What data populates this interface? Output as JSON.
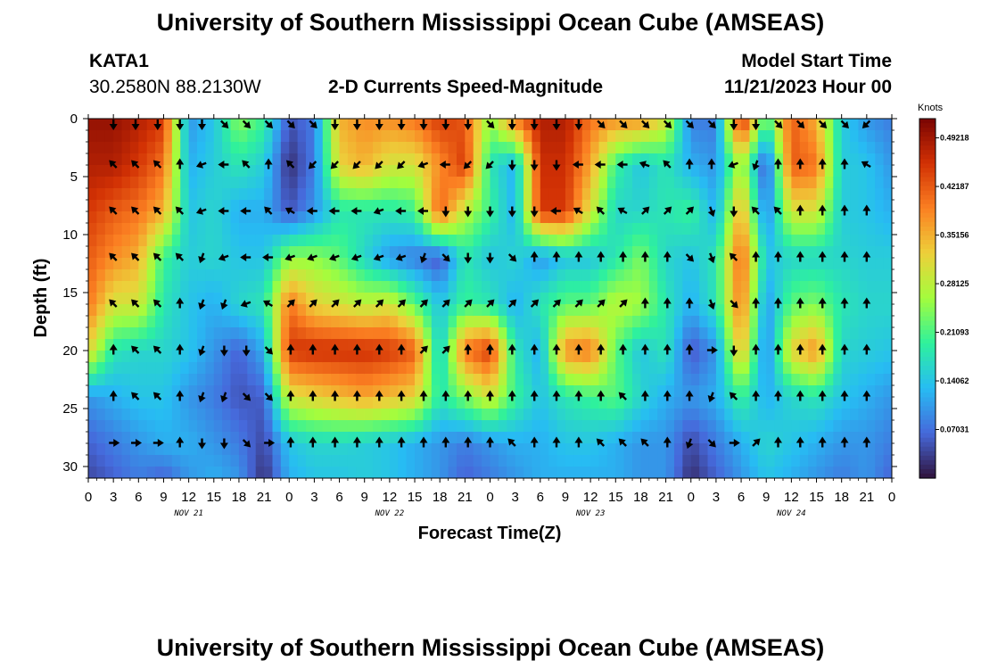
{
  "header": {
    "title": "University of Southern Mississippi Ocean Cube (AMSEAS)",
    "station": "KATA1",
    "coords": "30.2580N  88.2130W",
    "plot_title": "2-D Currents Speed-Magnitude",
    "model_label": "Model Start Time",
    "model_time": "11/21/2023 Hour 00"
  },
  "footer": {
    "title": "University of Southern Mississippi Ocean Cube (AMSEAS)"
  },
  "colors": {
    "colormap": [
      "#30123b",
      "#4669db",
      "#27bcf3",
      "#2ef19d",
      "#a3fd3d",
      "#edd03a",
      "#fb8022",
      "#d23104",
      "#7a0403"
    ]
  },
  "chart_data": {
    "type": "heatmap",
    "xlabel": "Forecast Time(Z)",
    "ylabel": "Depth (ft)",
    "colorbar_label": "Knots",
    "x_range_hours": [
      0,
      96
    ],
    "ylim": [
      0,
      31
    ],
    "y_inverted": true,
    "x_ticks": [
      "0",
      "3",
      "6",
      "9",
      "12",
      "15",
      "18",
      "21",
      "0",
      "3",
      "6",
      "9",
      "12",
      "15",
      "18",
      "21",
      "0",
      "3",
      "6",
      "9",
      "12",
      "15",
      "18",
      "21",
      "0",
      "3",
      "6",
      "9",
      "12",
      "15",
      "18",
      "21",
      "0"
    ],
    "y_ticks": [
      0,
      5,
      10,
      15,
      20,
      25,
      30
    ],
    "day_labels": [
      "NOV 21",
      "NOV 22",
      "NOV 23",
      "NOV 24"
    ],
    "colorbar_ticks": [
      "0.49218",
      "0.42187",
      "0.35156",
      "0.28125",
      "0.21093",
      "0.14062",
      "0.07031"
    ],
    "colorbar_range": [
      0,
      0.52
    ],
    "depths": [
      0,
      4,
      8,
      12,
      16,
      20,
      24,
      28,
      31
    ],
    "times_hours": [
      0,
      3,
      6,
      9,
      12,
      15,
      18,
      21,
      24,
      27,
      30,
      33,
      36,
      39,
      42,
      45,
      48,
      51,
      54,
      57,
      60,
      63,
      66,
      69,
      72,
      75,
      78,
      81,
      84,
      87,
      90,
      93,
      96
    ],
    "speed_knots": [
      [
        0.5,
        0.5,
        0.48,
        0.45,
        0.1,
        0.14,
        0.25,
        0.2,
        0.05,
        0.08,
        0.35,
        0.38,
        0.38,
        0.4,
        0.45,
        0.42,
        0.25,
        0.4,
        0.48,
        0.48,
        0.4,
        0.38,
        0.38,
        0.3,
        0.08,
        0.08,
        0.48,
        0.2,
        0.42,
        0.35,
        0.15,
        0.1,
        0.08
      ],
      [
        0.48,
        0.48,
        0.45,
        0.4,
        0.12,
        0.15,
        0.18,
        0.15,
        0.02,
        0.08,
        0.32,
        0.35,
        0.3,
        0.3,
        0.38,
        0.45,
        0.18,
        0.12,
        0.46,
        0.46,
        0.36,
        0.2,
        0.14,
        0.18,
        0.12,
        0.1,
        0.28,
        0.04,
        0.42,
        0.4,
        0.15,
        0.14,
        0.1
      ],
      [
        0.45,
        0.42,
        0.4,
        0.35,
        0.14,
        0.16,
        0.12,
        0.12,
        0.05,
        0.1,
        0.18,
        0.18,
        0.18,
        0.2,
        0.42,
        0.28,
        0.2,
        0.12,
        0.45,
        0.45,
        0.3,
        0.16,
        0.16,
        0.18,
        0.2,
        0.12,
        0.36,
        0.08,
        0.3,
        0.3,
        0.15,
        0.14,
        0.12
      ],
      [
        0.42,
        0.38,
        0.35,
        0.2,
        0.15,
        0.16,
        0.14,
        0.14,
        0.25,
        0.25,
        0.22,
        0.16,
        0.1,
        0.08,
        0.05,
        0.18,
        0.14,
        0.16,
        0.1,
        0.14,
        0.14,
        0.18,
        0.24,
        0.16,
        0.14,
        0.18,
        0.42,
        0.14,
        0.16,
        0.16,
        0.16,
        0.15,
        0.15
      ],
      [
        0.4,
        0.3,
        0.3,
        0.18,
        0.14,
        0.12,
        0.16,
        0.18,
        0.4,
        0.32,
        0.3,
        0.28,
        0.3,
        0.22,
        0.14,
        0.2,
        0.18,
        0.12,
        0.18,
        0.22,
        0.22,
        0.28,
        0.26,
        0.18,
        0.12,
        0.18,
        0.4,
        0.1,
        0.22,
        0.24,
        0.18,
        0.16,
        0.16
      ],
      [
        0.32,
        0.18,
        0.16,
        0.16,
        0.14,
        0.1,
        0.06,
        0.12,
        0.45,
        0.46,
        0.46,
        0.46,
        0.45,
        0.42,
        0.14,
        0.4,
        0.45,
        0.18,
        0.12,
        0.38,
        0.4,
        0.22,
        0.14,
        0.18,
        0.05,
        0.1,
        0.35,
        0.08,
        0.32,
        0.38,
        0.16,
        0.15,
        0.14
      ],
      [
        0.1,
        0.12,
        0.14,
        0.14,
        0.1,
        0.08,
        0.05,
        0.06,
        0.3,
        0.32,
        0.34,
        0.36,
        0.34,
        0.32,
        0.18,
        0.24,
        0.3,
        0.2,
        0.14,
        0.18,
        0.2,
        0.22,
        0.16,
        0.12,
        0.1,
        0.12,
        0.2,
        0.12,
        0.16,
        0.18,
        0.14,
        0.12,
        0.1
      ],
      [
        0.06,
        0.08,
        0.1,
        0.12,
        0.12,
        0.1,
        0.08,
        0.04,
        0.14,
        0.16,
        0.16,
        0.15,
        0.14,
        0.12,
        0.1,
        0.08,
        0.1,
        0.12,
        0.12,
        0.14,
        0.14,
        0.12,
        0.1,
        0.1,
        0.04,
        0.08,
        0.12,
        0.16,
        0.14,
        0.12,
        0.1,
        0.1,
        0.08
      ],
      [
        0.04,
        0.06,
        0.08,
        0.06,
        0.1,
        0.12,
        0.1,
        0.02,
        0.12,
        0.14,
        0.14,
        0.15,
        0.14,
        0.12,
        0.1,
        0.06,
        0.08,
        0.1,
        0.12,
        0.12,
        0.12,
        0.12,
        0.1,
        0.1,
        0.02,
        0.06,
        0.1,
        0.14,
        0.12,
        0.1,
        0.08,
        0.1,
        0.06
      ]
    ],
    "arrow_depths": [
      0,
      3.5,
      7.5,
      11.5,
      15.5,
      19.5,
      23.5,
      27.5
    ],
    "arrow_directions_deg": [
      [
        180,
        180,
        180,
        180,
        180,
        135,
        135,
        135,
        135,
        135,
        180,
        180,
        180,
        180,
        180,
        180,
        180,
        135,
        180,
        180,
        180,
        180,
        135,
        135,
        135,
        135,
        135,
        135,
        180,
        180,
        135,
        135,
        135,
        135,
        225
      ],
      [
        315,
        315,
        315,
        0,
        250,
        270,
        315,
        0,
        315,
        225,
        225,
        225,
        225,
        225,
        250,
        270,
        225,
        225,
        180,
        180,
        180,
        270,
        270,
        270,
        290,
        315,
        0,
        0,
        250,
        200,
        0,
        0,
        0,
        0,
        300
      ],
      [
        315,
        315,
        315,
        315,
        250,
        270,
        270,
        315,
        300,
        270,
        270,
        270,
        250,
        270,
        270,
        180,
        180,
        180,
        180,
        180,
        270,
        300,
        315,
        300,
        45,
        45,
        45,
        160,
        180,
        315,
        315,
        0,
        0,
        0,
        0
      ],
      [
        315,
        315,
        315,
        315,
        200,
        250,
        270,
        270,
        250,
        250,
        250,
        250,
        250,
        250,
        200,
        135,
        180,
        180,
        135,
        0,
        0,
        0,
        0,
        0,
        0,
        0,
        135,
        160,
        315,
        0,
        0,
        0,
        0,
        0,
        0
      ],
      [
        315,
        315,
        315,
        0,
        200,
        200,
        250,
        300,
        45,
        45,
        45,
        45,
        45,
        45,
        45,
        45,
        45,
        45,
        45,
        45,
        45,
        45,
        45,
        45,
        0,
        0,
        0,
        160,
        135,
        0,
        0,
        0,
        0,
        0,
        0
      ],
      [
        0,
        315,
        315,
        0,
        200,
        180,
        180,
        135,
        0,
        0,
        0,
        0,
        0,
        0,
        45,
        45,
        0,
        0,
        0,
        0,
        0,
        0,
        0,
        0,
        0,
        0,
        0,
        90,
        180,
        0,
        0,
        0,
        0,
        0,
        0
      ],
      [
        0,
        315,
        315,
        0,
        200,
        200,
        135,
        135,
        0,
        0,
        0,
        0,
        0,
        0,
        0,
        0,
        0,
        0,
        0,
        0,
        0,
        0,
        0,
        315,
        0,
        0,
        0,
        200,
        315,
        0,
        0,
        0,
        0,
        0,
        0
      ],
      [
        90,
        90,
        90,
        0,
        180,
        180,
        135,
        90,
        0,
        0,
        0,
        0,
        0,
        0,
        0,
        0,
        0,
        0,
        315,
        0,
        0,
        0,
        315,
        315,
        315,
        0,
        200,
        135,
        90,
        45,
        0,
        0,
        0,
        0,
        0
      ]
    ]
  }
}
